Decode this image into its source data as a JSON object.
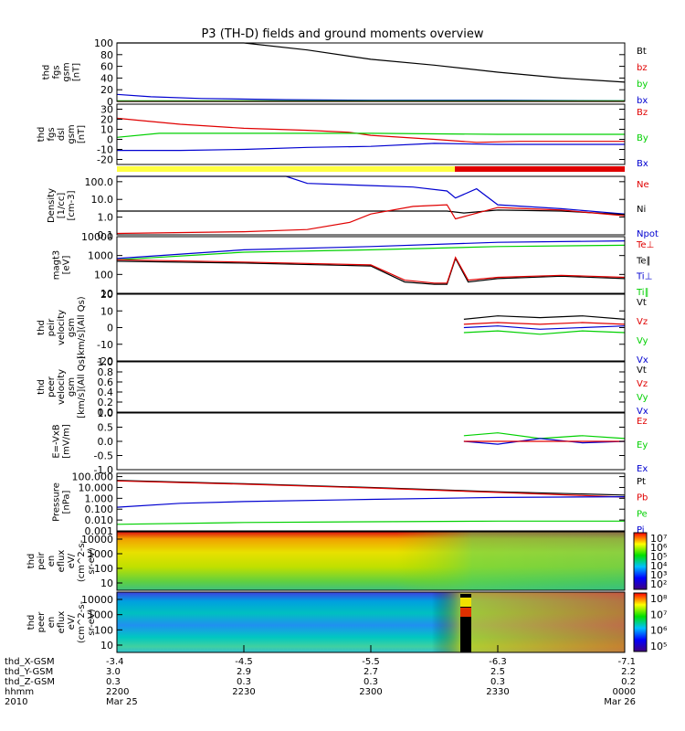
{
  "title": "P3 (TH-D) fields and ground moments overview",
  "colors": {
    "black": "#000000",
    "red": "#e00000",
    "green": "#00d000",
    "blue": "#0000d0",
    "yellow": "#ffff40"
  },
  "chart_data": [
    {
      "id": "fgs",
      "type": "line",
      "ylabel": [
        "thd",
        "fgs",
        "gsm",
        "[nT]"
      ],
      "ylim": [
        0,
        100
      ],
      "yticks": [
        {
          "v": 100,
          "t": "100"
        },
        {
          "v": 80,
          "t": "80"
        },
        {
          "v": 60,
          "t": "60"
        },
        {
          "v": 40,
          "t": "40"
        },
        {
          "v": 20,
          "t": "20"
        },
        {
          "v": 0,
          "t": "0"
        }
      ],
      "legend": [
        {
          "t": "Bt",
          "c": "black"
        },
        {
          "t": "bz",
          "c": "red"
        },
        {
          "t": "by",
          "c": "green"
        },
        {
          "t": "bx",
          "c": "blue"
        }
      ],
      "series": [
        {
          "c": "black",
          "x": [
            2200,
            2230,
            2245,
            2300,
            2315,
            2330,
            2345,
            2400
          ],
          "y": [
            112,
            101,
            88,
            72,
            62,
            50,
            40,
            33
          ]
        },
        {
          "c": "blue",
          "x": [
            2200,
            2208,
            2220,
            2240,
            2300,
            2330,
            2400
          ],
          "y": [
            12,
            8,
            5,
            3,
            2,
            2,
            1
          ]
        },
        {
          "c": "green",
          "x": [
            2200,
            2400
          ],
          "y": [
            1,
            1
          ]
        },
        {
          "c": "red",
          "x": [
            2200,
            2400
          ],
          "y": [
            0,
            0
          ]
        }
      ]
    },
    {
      "id": "fgs_dsl",
      "type": "line",
      "ylabel": [
        "thd",
        "fgs",
        "dsl",
        "gsm",
        "[nT]"
      ],
      "ylim": [
        -25,
        35
      ],
      "yticks": [
        {
          "v": 30,
          "t": "30"
        },
        {
          "v": 20,
          "t": "20"
        },
        {
          "v": 10,
          "t": "10"
        },
        {
          "v": 0,
          "t": "0"
        },
        {
          "v": -10,
          "t": "-10"
        },
        {
          "v": -20,
          "t": "-20"
        }
      ],
      "legend": [
        {
          "t": "Bz",
          "c": "red"
        },
        {
          "t": "By",
          "c": "green"
        },
        {
          "t": "Bx",
          "c": "blue"
        }
      ],
      "series": [
        {
          "c": "red",
          "x": [
            2200,
            2205,
            2215,
            2230,
            2245,
            2255,
            2300,
            2315,
            2325,
            2335,
            2400
          ],
          "y": [
            21,
            19,
            15,
            11,
            9,
            7,
            4,
            0,
            -3,
            -2,
            -2
          ]
        },
        {
          "c": "green",
          "x": [
            2200,
            2210,
            2230,
            2300,
            2330,
            2400
          ],
          "y": [
            2,
            6,
            6,
            6,
            5,
            5
          ]
        },
        {
          "c": "blue",
          "x": [
            2200,
            2215,
            2230,
            2245,
            2300,
            2315,
            2330,
            2400
          ],
          "y": [
            -11,
            -11,
            -10,
            -8,
            -7,
            -4,
            -5,
            -5
          ]
        }
      ]
    },
    {
      "id": "density",
      "type": "line",
      "log": true,
      "ylabel": [
        "Density",
        "[1/cc]",
        "[cm-3]"
      ],
      "ylim": [
        0.1,
        200
      ],
      "yticks": [
        {
          "v": 100,
          "t": "100.0"
        },
        {
          "v": 10,
          "t": "10.0"
        },
        {
          "v": 1,
          "t": "1.0"
        },
        {
          "v": 0.1,
          "t": "0.1"
        }
      ],
      "legend": [
        {
          "t": "Ne",
          "c": "red"
        },
        {
          "t": "Ni",
          "c": "black"
        },
        {
          "t": "Npot",
          "c": "blue"
        }
      ],
      "series": [
        {
          "c": "blue",
          "x": [
            2200,
            2240,
            2245,
            2300,
            2310,
            2318,
            2320,
            2325,
            2330,
            2345,
            2400
          ],
          "y": [
            200,
            200,
            80,
            60,
            50,
            30,
            12,
            40,
            5,
            3,
            1.5
          ]
        },
        {
          "c": "black",
          "x": [
            2200,
            2230,
            2300,
            2318,
            2322,
            2330,
            2345,
            2400
          ],
          "y": [
            2.2,
            2.2,
            2.2,
            2.2,
            1.7,
            2.5,
            2.2,
            1.4
          ]
        },
        {
          "c": "red",
          "x": [
            2200,
            2230,
            2245,
            2255,
            2300,
            2310,
            2318,
            2320,
            2330,
            2345,
            2400
          ],
          "y": [
            0.12,
            0.15,
            0.2,
            0.5,
            1.5,
            4,
            5,
            0.8,
            3.5,
            2.5,
            1.2
          ]
        }
      ]
    },
    {
      "id": "temp",
      "type": "line",
      "log": true,
      "ylabel": [
        "magt3",
        "[eV]"
      ],
      "ylim": [
        10,
        10000
      ],
      "yticks": [
        {
          "v": 10000,
          "t": "10000"
        },
        {
          "v": 1000,
          "t": "1000"
        },
        {
          "v": 100,
          "t": "100"
        },
        {
          "v": 10,
          "t": "10"
        }
      ],
      "legend": [
        {
          "t": "Te⊥",
          "c": "red"
        },
        {
          "t": "Te∥",
          "c": "black"
        },
        {
          "t": "Ti⊥",
          "c": "blue"
        },
        {
          "t": "Ti∥",
          "c": "green"
        }
      ],
      "series": [
        {
          "c": "blue",
          "x": [
            2200,
            2230,
            2300,
            2330,
            2400
          ],
          "y": [
            700,
            2000,
            3000,
            5000,
            6000
          ]
        },
        {
          "c": "green",
          "x": [
            2200,
            2230,
            2300,
            2330,
            2400
          ],
          "y": [
            600,
            1500,
            2000,
            3000,
            3500
          ]
        },
        {
          "c": "black",
          "x": [
            2200,
            2230,
            2300,
            2308,
            2315,
            2318,
            2320,
            2323,
            2330,
            2345,
            2400
          ],
          "y": [
            500,
            400,
            280,
            40,
            30,
            30,
            700,
            40,
            60,
            80,
            60
          ]
        },
        {
          "c": "red",
          "x": [
            2200,
            2230,
            2300,
            2308,
            2315,
            2318,
            2320,
            2323,
            2330,
            2345,
            2400
          ],
          "y": [
            600,
            450,
            320,
            50,
            35,
            35,
            800,
            50,
            70,
            90,
            70
          ]
        }
      ]
    },
    {
      "id": "peir_vel",
      "type": "line",
      "ylabel": [
        "thd",
        "peir",
        "velocity",
        "gsm",
        "[km/s](All Qs)"
      ],
      "ylim": [
        -20,
        20
      ],
      "yticks": [
        {
          "v": 20,
          "t": "20"
        },
        {
          "v": 10,
          "t": "10"
        },
        {
          "v": 0,
          "t": "0"
        },
        {
          "v": -10,
          "t": "-10"
        },
        {
          "v": -20,
          "t": "-20"
        }
      ],
      "legend": [
        {
          "t": "Vt",
          "c": "black"
        },
        {
          "t": "Vz",
          "c": "red"
        },
        {
          "t": "Vy",
          "c": "green"
        },
        {
          "t": "Vx",
          "c": "blue"
        }
      ],
      "series": [
        {
          "c": "black",
          "x": [
            2322,
            2330,
            2340,
            2350,
            2400
          ],
          "y": [
            5,
            7,
            6,
            7,
            5
          ]
        },
        {
          "c": "blue",
          "x": [
            2322,
            2330,
            2340,
            2350,
            2400
          ],
          "y": [
            0,
            1,
            -1,
            0,
            1
          ]
        },
        {
          "c": "green",
          "x": [
            2322,
            2330,
            2340,
            2350,
            2400
          ],
          "y": [
            -3,
            -2,
            -4,
            -2,
            -3
          ]
        },
        {
          "c": "red",
          "x": [
            2322,
            2330,
            2340,
            2350,
            2400
          ],
          "y": [
            2,
            3,
            2,
            3,
            2
          ]
        }
      ]
    },
    {
      "id": "peer_vel",
      "type": "line",
      "ylabel": [
        "thd",
        "peer",
        "velocity",
        "gsm",
        "[km/s](All Qs)"
      ],
      "ylim": [
        0,
        1
      ],
      "yticks": [
        {
          "v": 1,
          "t": "1.0"
        },
        {
          "v": 0.8,
          "t": "0.8"
        },
        {
          "v": 0.6,
          "t": "0.6"
        },
        {
          "v": 0.4,
          "t": "0.4"
        },
        {
          "v": 0.2,
          "t": "0.2"
        },
        {
          "v": 0,
          "t": "0.0"
        }
      ],
      "legend": [
        {
          "t": "Vt",
          "c": "black"
        },
        {
          "t": "Vz",
          "c": "red"
        },
        {
          "t": "Vy",
          "c": "green"
        },
        {
          "t": "Vx",
          "c": "blue"
        }
      ],
      "series": []
    },
    {
      "id": "efield",
      "type": "line",
      "ylabel": [
        "E=-VxB",
        "[mV/m]"
      ],
      "ylim": [
        -1,
        1
      ],
      "yticks": [
        {
          "v": 1,
          "t": "1.0"
        },
        {
          "v": 0.5,
          "t": "0.5"
        },
        {
          "v": 0,
          "t": "0.0"
        },
        {
          "v": -0.5,
          "t": "-0.5"
        },
        {
          "v": -1,
          "t": "-1.0"
        }
      ],
      "legend": [
        {
          "t": "Ez",
          "c": "red"
        },
        {
          "t": "Ey",
          "c": "green"
        },
        {
          "t": "Ex",
          "c": "blue"
        }
      ],
      "series": [
        {
          "c": "green",
          "x": [
            2322,
            2330,
            2340,
            2350,
            2400
          ],
          "y": [
            0.2,
            0.3,
            0.1,
            0.2,
            0.1
          ]
        },
        {
          "c": "blue",
          "x": [
            2322,
            2330,
            2340,
            2350,
            2400
          ],
          "y": [
            0,
            -0.1,
            0.1,
            -0.05,
            0
          ]
        },
        {
          "c": "red",
          "x": [
            2322,
            2400
          ],
          "y": [
            0,
            0
          ]
        }
      ]
    },
    {
      "id": "pressure",
      "type": "line",
      "log": true,
      "ylabel": [
        "Pressure",
        "[nPa]"
      ],
      "ylim": [
        0.001,
        200
      ],
      "yticks": [
        {
          "v": 100,
          "t": "100.000"
        },
        {
          "v": 10,
          "t": "10.000"
        },
        {
          "v": 1,
          "t": "1.000"
        },
        {
          "v": 0.1,
          "t": "0.100"
        },
        {
          "v": 0.01,
          "t": "0.010"
        },
        {
          "v": 0.001,
          "t": "0.001"
        }
      ],
      "legend": [
        {
          "t": "Pt",
          "c": "black"
        },
        {
          "t": "Pb",
          "c": "red"
        },
        {
          "t": "Pe",
          "c": "green"
        },
        {
          "t": "Pi",
          "c": "blue"
        }
      ],
      "series": [
        {
          "c": "black",
          "x": [
            2200,
            2230,
            2300,
            2330,
            2400
          ],
          "y": [
            45,
            22,
            10,
            4,
            2
          ]
        },
        {
          "c": "red",
          "x": [
            2200,
            2230,
            2300,
            2330,
            2400
          ],
          "y": [
            40,
            20,
            9,
            3.5,
            1.3
          ]
        },
        {
          "c": "blue",
          "x": [
            2200,
            2215,
            2230,
            2300,
            2330,
            2400
          ],
          "y": [
            0.15,
            0.35,
            0.5,
            0.8,
            1.2,
            1.4
          ]
        },
        {
          "c": "green",
          "x": [
            2200,
            2230,
            2300,
            2330,
            2400
          ],
          "y": [
            0.004,
            0.006,
            0.007,
            0.008,
            0.008
          ]
        }
      ]
    },
    {
      "id": "peir_en",
      "type": "heatmap",
      "ylabel": [
        "thd",
        "peir",
        "en",
        "eflux",
        "eV/",
        "(cm^2-s-",
        "sr-eV)"
      ],
      "yticks": [
        {
          "t": "10000"
        },
        {
          "t": "1000"
        },
        {
          "t": "100"
        },
        {
          "t": "10"
        }
      ],
      "colorbar": [
        "10⁷",
        "10⁶",
        "10⁵",
        "10⁴",
        "10³",
        "10²"
      ]
    },
    {
      "id": "peer_en",
      "type": "heatmap",
      "ylabel": [
        "thd",
        "peer",
        "en",
        "eflux",
        "eV/",
        "(cm^2-s-",
        "sr-eV)"
      ],
      "yticks": [
        {
          "t": "10000"
        },
        {
          "t": "1000"
        },
        {
          "t": "100"
        },
        {
          "t": "10"
        }
      ],
      "colorbar": [
        "10⁸",
        "10⁷",
        "10⁶",
        "10⁵"
      ]
    }
  ],
  "footer": {
    "rows": [
      {
        "label": "thd_X-GSM",
        "values": [
          "-3.4",
          "-4.5",
          "-5.5",
          "-6.3",
          "-7.1"
        ]
      },
      {
        "label": "thd_Y-GSM",
        "values": [
          "3.0",
          "2.9",
          "2.7",
          "2.5",
          "2.2"
        ]
      },
      {
        "label": "thd_Z-GSM",
        "values": [
          "0.3",
          "0.3",
          "0.3",
          "0.3",
          "0.2"
        ]
      },
      {
        "label": "hhmm",
        "values": [
          "2200",
          "2230",
          "2300",
          "2330",
          "0000"
        ]
      },
      {
        "label": "2010",
        "values": [
          "Mar 25",
          "",
          "",
          "",
          "Mar 26"
        ]
      }
    ]
  }
}
